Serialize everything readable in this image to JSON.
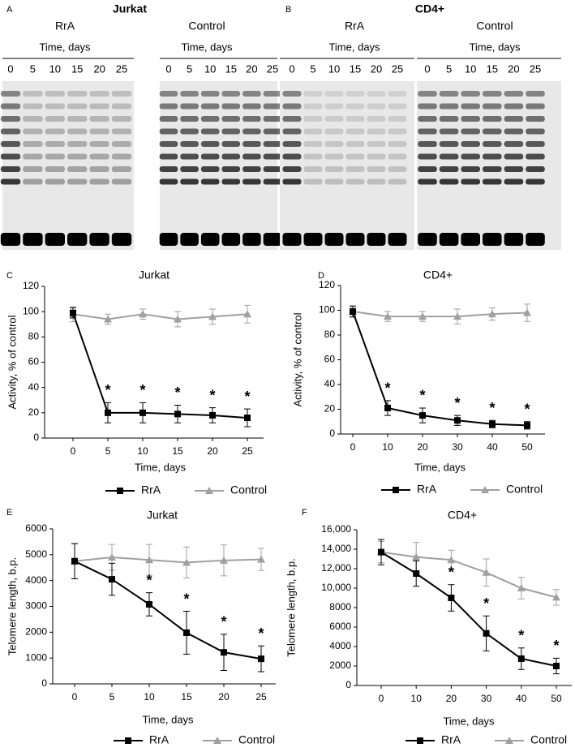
{
  "gels": [
    {
      "panel": "A",
      "title": "Jurkat",
      "groups": [
        {
          "label": "RrA",
          "axis_label": "Time, days",
          "lanes": [
            0,
            5,
            10,
            15,
            20,
            25
          ]
        },
        {
          "label": "Control",
          "axis_label": "Time, days",
          "lanes": [
            0,
            5,
            10,
            15,
            20,
            25
          ]
        }
      ]
    },
    {
      "panel": "B",
      "title": "CD4+",
      "groups": [
        {
          "label": "RrA",
          "axis_label": "Time, days",
          "lanes": [
            0,
            5,
            10,
            15,
            20,
            25
          ]
        },
        {
          "label": "Control",
          "axis_label": "Time, days",
          "lanes": [
            0,
            5,
            10,
            15,
            20,
            25
          ]
        }
      ]
    }
  ],
  "chart_data": [
    {
      "type": "line",
      "panel": "C",
      "title": "Jurkat",
      "x_label": "Time, days",
      "y_label": "Activity, % of control",
      "categories": [
        "0",
        "5",
        "10",
        "15",
        "20",
        "25"
      ],
      "annotations": [
        null,
        "*",
        "*",
        "*",
        "*",
        "*"
      ],
      "ylim": [
        0,
        120
      ],
      "yticks": [
        0,
        20,
        40,
        60,
        80,
        100,
        120
      ],
      "series": [
        {
          "name": "RrA",
          "color": "#000000",
          "marker": "square",
          "values": [
            99,
            20,
            20,
            19,
            18,
            16
          ],
          "errors": [
            4,
            8,
            8,
            7,
            6,
            7
          ]
        },
        {
          "name": "Control",
          "color": "#a0a0a0",
          "marker": "triangle",
          "values": [
            98,
            94,
            98,
            94,
            96,
            98
          ],
          "errors": [
            6,
            4,
            4,
            6,
            6,
            7
          ]
        }
      ]
    },
    {
      "type": "line",
      "panel": "D",
      "title": "CD4+",
      "x_label": "Time, days",
      "y_label": "Activity, % of control",
      "categories": [
        "0",
        "10",
        "20",
        "30",
        "40",
        "50"
      ],
      "annotations": [
        null,
        "*",
        "*",
        "*",
        "*",
        "*"
      ],
      "ylim": [
        0,
        120
      ],
      "yticks": [
        0,
        20,
        40,
        60,
        80,
        100,
        120
      ],
      "series": [
        {
          "name": "RrA",
          "color": "#000000",
          "marker": "square",
          "values": [
            99,
            21,
            15,
            11,
            8,
            7
          ],
          "errors": [
            4,
            6,
            6,
            4,
            3,
            3
          ]
        },
        {
          "name": "Control",
          "color": "#a0a0a0",
          "marker": "triangle",
          "values": [
            99,
            95,
            95,
            95,
            97,
            98
          ],
          "errors": [
            5,
            4,
            4,
            6,
            5,
            7
          ]
        }
      ]
    },
    {
      "type": "line",
      "panel": "E",
      "title": "Jurkat",
      "x_label": "Time, days",
      "y_label": "Telomere length, b.p.",
      "categories": [
        "0",
        "5",
        "10",
        "15",
        "20",
        "25"
      ],
      "annotations": [
        null,
        null,
        "*",
        "*",
        "*",
        "*"
      ],
      "ylim": [
        0,
        6000
      ],
      "yticks": [
        0,
        1000,
        2000,
        3000,
        4000,
        5000,
        6000
      ],
      "series": [
        {
          "name": "RrA",
          "color": "#000000",
          "marker": "square",
          "values": [
            4750,
            4050,
            3080,
            1980,
            1220,
            970
          ],
          "errors": [
            680,
            620,
            450,
            830,
            700,
            500
          ]
        },
        {
          "name": "Control",
          "color": "#a0a0a0",
          "marker": "triangle",
          "values": [
            4750,
            4900,
            4800,
            4700,
            4780,
            4820
          ],
          "errors": [
            680,
            500,
            600,
            600,
            600,
            430
          ]
        }
      ]
    },
    {
      "type": "line",
      "panel": "F",
      "title": "CD4+",
      "x_label": "Time, days",
      "y_label": "Telomere length, b.p.",
      "categories": [
        "0",
        "10",
        "20",
        "30",
        "40",
        "50"
      ],
      "annotations": [
        null,
        null,
        "*",
        "*",
        "*",
        "*"
      ],
      "ylim": [
        0,
        16000
      ],
      "yticks": [
        0,
        2000,
        4000,
        6000,
        8000,
        {
          "value": 10000,
          "label": "10,000"
        },
        {
          "value": 12000,
          "label": "12,000"
        },
        {
          "value": 14000,
          "label": "14,000"
        },
        {
          "value": 16000,
          "label": "16,000"
        }
      ],
      "series": [
        {
          "name": "RrA",
          "color": "#000000",
          "marker": "square",
          "values": [
            13700,
            11500,
            9000,
            5350,
            2750,
            2000
          ],
          "errors": [
            1300,
            1300,
            1350,
            1800,
            1100,
            800
          ]
        },
        {
          "name": "Control",
          "color": "#a0a0a0",
          "marker": "triangle",
          "values": [
            13700,
            13200,
            12900,
            11600,
            10000,
            9050
          ],
          "errors": [
            1100,
            1500,
            1000,
            1400,
            1100,
            800
          ]
        }
      ]
    }
  ]
}
